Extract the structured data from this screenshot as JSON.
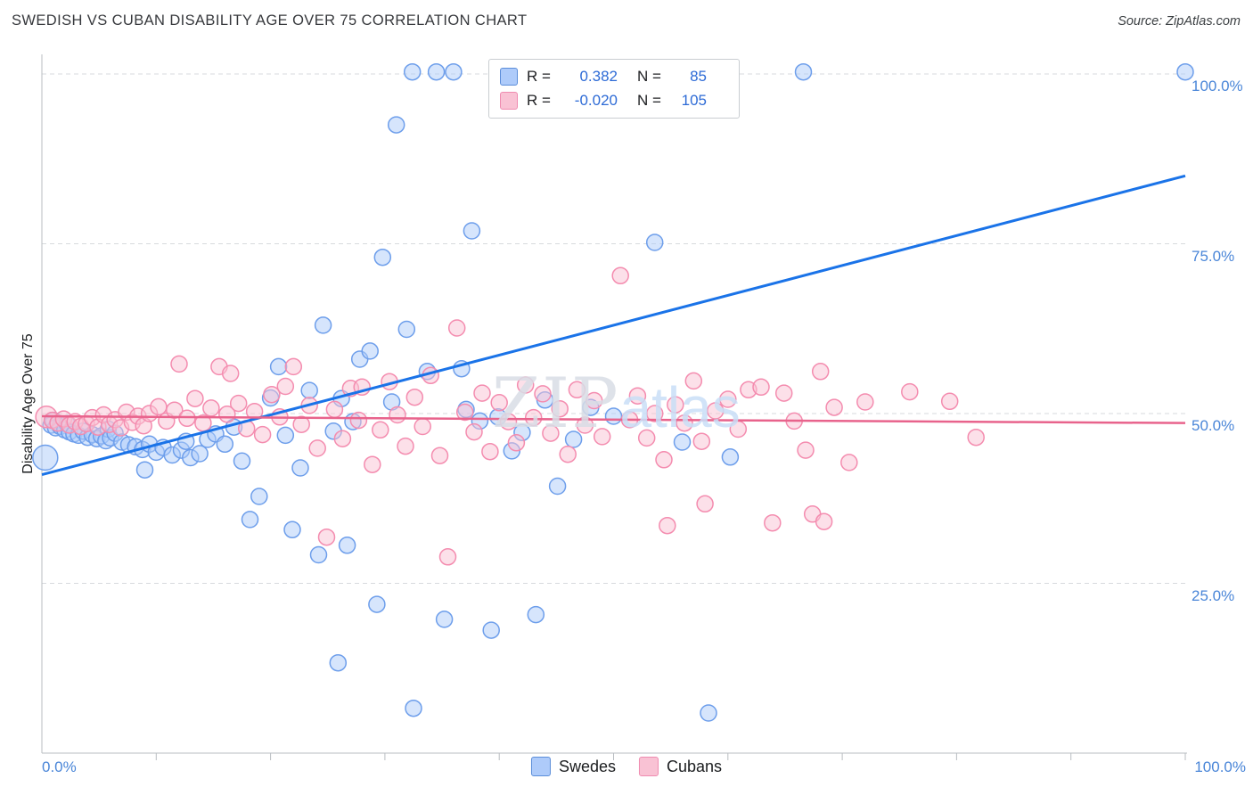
{
  "header": {
    "title": "SWEDISH VS CUBAN DISABILITY AGE OVER 75 CORRELATION CHART",
    "source": "Source: ZipAtlas.com"
  },
  "axes": {
    "y_title": "Disability Age Over 75",
    "x_min_label": "0.0%",
    "x_max_label": "100.0%"
  },
  "watermark": {
    "zip": "ZIP",
    "atlas": "atlas"
  },
  "legend": {
    "series": [
      {
        "r_label": "R =",
        "r_value": "0.382",
        "n_label": "N =",
        "n_value": "85"
      },
      {
        "r_label": "R =",
        "r_value": "-0.020",
        "n_label": "N =",
        "n_value": "105"
      }
    ]
  },
  "bottom_legend": {
    "swedes": "Swedes",
    "cubans": "Cubans"
  },
  "colors": {
    "blue_stroke": "#6d9eeb",
    "blue_fill": "#aecbfa",
    "blue_line": "#1a73e8",
    "pink_stroke": "#f48caf",
    "pink_fill": "#f9c2d4",
    "pink_line": "#e8638c",
    "tick_label": "#4a86d8",
    "grid": "#d7dadd"
  },
  "chart_data": {
    "type": "scatter",
    "title": "SWEDISH VS CUBAN DISABILITY AGE OVER 75 CORRELATION CHART",
    "xlabel": "",
    "ylabel": "Disability Age Over 75",
    "xlim": [
      0,
      100
    ],
    "ylim": [
      0,
      100
    ],
    "grid": true,
    "legend_position": "top-center",
    "x_ticks": [
      10,
      20,
      30,
      40,
      50,
      60,
      70,
      80,
      90,
      100
    ],
    "y_ticks": [
      {
        "label": "100.0%",
        "value": 100
      },
      {
        "label": "75.0%",
        "value": 75
      },
      {
        "label": "50.0%",
        "value": 50
      },
      {
        "label": "25.0%",
        "value": 25
      }
    ],
    "series": [
      {
        "name": "Swedes",
        "R": 0.382,
        "N": 85,
        "stroke": "#6d9eeb",
        "fill": "#aecbfa",
        "line": "#1a73e8",
        "line_width": 3,
        "trend": {
          "x": [
            0,
            100
          ],
          "y": [
            41.0,
            85.0
          ]
        },
        "points": [
          [
            0.3,
            43.5,
            14
          ],
          [
            0.8,
            48.3
          ],
          [
            1.0,
            49.0
          ],
          [
            1.2,
            47.9
          ],
          [
            1.6,
            48.1
          ],
          [
            2.0,
            47.6
          ],
          [
            2.2,
            48.5
          ],
          [
            2.4,
            47.3
          ],
          [
            2.8,
            47.0
          ],
          [
            3.2,
            46.8
          ],
          [
            3.6,
            47.4
          ],
          [
            4.0,
            46.5
          ],
          [
            4.4,
            46.9
          ],
          [
            4.8,
            46.3
          ],
          [
            5.2,
            46.7
          ],
          [
            5.6,
            46.0
          ],
          [
            5.8,
            47.7
          ],
          [
            6.0,
            46.4
          ],
          [
            6.4,
            47.1
          ],
          [
            7.0,
            45.8
          ],
          [
            7.6,
            45.4
          ],
          [
            8.2,
            45.1
          ],
          [
            8.8,
            44.7
          ],
          [
            9.0,
            41.7
          ],
          [
            9.4,
            45.5
          ],
          [
            10.0,
            44.3
          ],
          [
            10.6,
            45.0
          ],
          [
            11.4,
            43.9
          ],
          [
            12.2,
            44.6
          ],
          [
            12.6,
            45.9
          ],
          [
            13.0,
            43.5
          ],
          [
            13.8,
            44.1
          ],
          [
            14.5,
            46.2
          ],
          [
            15.2,
            47.0
          ],
          [
            16.0,
            45.5
          ],
          [
            16.8,
            48.0
          ],
          [
            17.5,
            43.0
          ],
          [
            18.2,
            34.4
          ],
          [
            19.0,
            37.8
          ],
          [
            20.0,
            52.3
          ],
          [
            20.7,
            56.9
          ],
          [
            21.3,
            46.8
          ],
          [
            21.9,
            32.9
          ],
          [
            22.6,
            42.0
          ],
          [
            23.4,
            53.4
          ],
          [
            24.2,
            29.2
          ],
          [
            24.6,
            63.0
          ],
          [
            25.5,
            47.4
          ],
          [
            25.9,
            13.3
          ],
          [
            26.2,
            52.2
          ],
          [
            26.7,
            30.6
          ],
          [
            27.2,
            48.8
          ],
          [
            27.8,
            58.0
          ],
          [
            28.7,
            59.2
          ],
          [
            29.3,
            21.9
          ],
          [
            29.8,
            73.0
          ],
          [
            30.6,
            51.7
          ],
          [
            31.0,
            92.5
          ],
          [
            31.9,
            62.4
          ],
          [
            32.4,
            100.3
          ],
          [
            32.5,
            6.6
          ],
          [
            33.7,
            56.2
          ],
          [
            34.5,
            100.3
          ],
          [
            35.2,
            19.7
          ],
          [
            36.0,
            100.3
          ],
          [
            36.7,
            56.6
          ],
          [
            37.1,
            50.6
          ],
          [
            37.6,
            76.9
          ],
          [
            38.3,
            48.9
          ],
          [
            39.3,
            18.1
          ],
          [
            39.9,
            49.5
          ],
          [
            41.1,
            44.5
          ],
          [
            42.0,
            47.2
          ],
          [
            43.2,
            20.4
          ],
          [
            44.0,
            52.0
          ],
          [
            45.1,
            39.3
          ],
          [
            46.5,
            46.2
          ],
          [
            48.0,
            50.9
          ],
          [
            50.0,
            49.6
          ],
          [
            53.6,
            75.2
          ],
          [
            56.0,
            45.8
          ],
          [
            58.3,
            5.9
          ],
          [
            60.2,
            43.6
          ],
          [
            66.6,
            100.3
          ],
          [
            100.0,
            100.3
          ]
        ]
      },
      {
        "name": "Cubans",
        "R": -0.02,
        "N": 105,
        "stroke": "#f48caf",
        "fill": "#f9c2d4",
        "line": "#e8638c",
        "line_width": 2.5,
        "trend": {
          "x": [
            0,
            100
          ],
          "y": [
            49.6,
            48.6
          ]
        },
        "points": [
          [
            0.4,
            49.5,
            12
          ],
          [
            0.9,
            49.0
          ],
          [
            1.4,
            48.6
          ],
          [
            1.9,
            49.2
          ],
          [
            2.4,
            48.3
          ],
          [
            2.9,
            48.8
          ],
          [
            3.4,
            48.1
          ],
          [
            3.9,
            48.5
          ],
          [
            4.4,
            49.4
          ],
          [
            4.9,
            48.0
          ],
          [
            5.4,
            49.8
          ],
          [
            5.9,
            48.4
          ],
          [
            6.4,
            49.1
          ],
          [
            6.9,
            47.9
          ],
          [
            7.4,
            50.2
          ],
          [
            7.9,
            48.7
          ],
          [
            8.4,
            49.6
          ],
          [
            8.9,
            48.2
          ],
          [
            9.4,
            50.0
          ],
          [
            10.2,
            51.0
          ],
          [
            10.9,
            48.9
          ],
          [
            11.6,
            50.5
          ],
          [
            12.0,
            57.3
          ],
          [
            12.7,
            49.3
          ],
          [
            13.4,
            52.2
          ],
          [
            14.1,
            48.6
          ],
          [
            14.8,
            50.8
          ],
          [
            15.5,
            56.9
          ],
          [
            16.2,
            49.9
          ],
          [
            16.5,
            55.9
          ],
          [
            17.2,
            51.5
          ],
          [
            17.9,
            47.8
          ],
          [
            18.6,
            50.3
          ],
          [
            19.3,
            46.9
          ],
          [
            20.1,
            52.8
          ],
          [
            20.8,
            49.5
          ],
          [
            21.3,
            54.0
          ],
          [
            22.0,
            56.9
          ],
          [
            22.7,
            48.4
          ],
          [
            23.4,
            51.2
          ],
          [
            24.1,
            44.9
          ],
          [
            24.9,
            31.8
          ],
          [
            25.6,
            50.6
          ],
          [
            26.3,
            46.3
          ],
          [
            27.0,
            53.7
          ],
          [
            27.7,
            49.0
          ],
          [
            28.0,
            53.9
          ],
          [
            28.9,
            42.5
          ],
          [
            29.6,
            47.6
          ],
          [
            30.4,
            54.7
          ],
          [
            31.1,
            49.8
          ],
          [
            31.8,
            45.2
          ],
          [
            32.6,
            52.4
          ],
          [
            33.3,
            48.1
          ],
          [
            34.0,
            55.6
          ],
          [
            34.8,
            43.8
          ],
          [
            35.5,
            28.9
          ],
          [
            36.3,
            62.6
          ],
          [
            37.0,
            50.2
          ],
          [
            37.8,
            47.3
          ],
          [
            38.5,
            53.0
          ],
          [
            39.2,
            44.4
          ],
          [
            40.0,
            51.6
          ],
          [
            40.8,
            48.8
          ],
          [
            41.5,
            45.7
          ],
          [
            42.3,
            54.2
          ],
          [
            43.0,
            49.4
          ],
          [
            43.8,
            52.9
          ],
          [
            44.5,
            47.1
          ],
          [
            45.3,
            50.7
          ],
          [
            46.0,
            44.0
          ],
          [
            46.8,
            53.5
          ],
          [
            47.5,
            48.3
          ],
          [
            48.3,
            51.9
          ],
          [
            49.0,
            46.6
          ],
          [
            50.6,
            70.3
          ],
          [
            51.4,
            49.1
          ],
          [
            52.1,
            52.6
          ],
          [
            52.9,
            46.4
          ],
          [
            53.6,
            50.0
          ],
          [
            54.4,
            43.2
          ],
          [
            54.7,
            33.5
          ],
          [
            55.4,
            51.3
          ],
          [
            56.2,
            48.6
          ],
          [
            57.0,
            54.8
          ],
          [
            57.7,
            45.9
          ],
          [
            58.0,
            36.7
          ],
          [
            58.9,
            50.4
          ],
          [
            60.0,
            52.1
          ],
          [
            60.9,
            47.7
          ],
          [
            61.8,
            53.5
          ],
          [
            62.9,
            53.9
          ],
          [
            63.9,
            33.9
          ],
          [
            64.9,
            53.0
          ],
          [
            65.8,
            48.9
          ],
          [
            66.8,
            44.6
          ],
          [
            67.4,
            35.2
          ],
          [
            68.1,
            56.2
          ],
          [
            68.4,
            34.1
          ],
          [
            69.3,
            50.9
          ],
          [
            70.6,
            42.8
          ],
          [
            72.0,
            51.7
          ],
          [
            75.9,
            53.2
          ],
          [
            79.4,
            51.8
          ],
          [
            81.7,
            46.5
          ]
        ]
      }
    ]
  }
}
